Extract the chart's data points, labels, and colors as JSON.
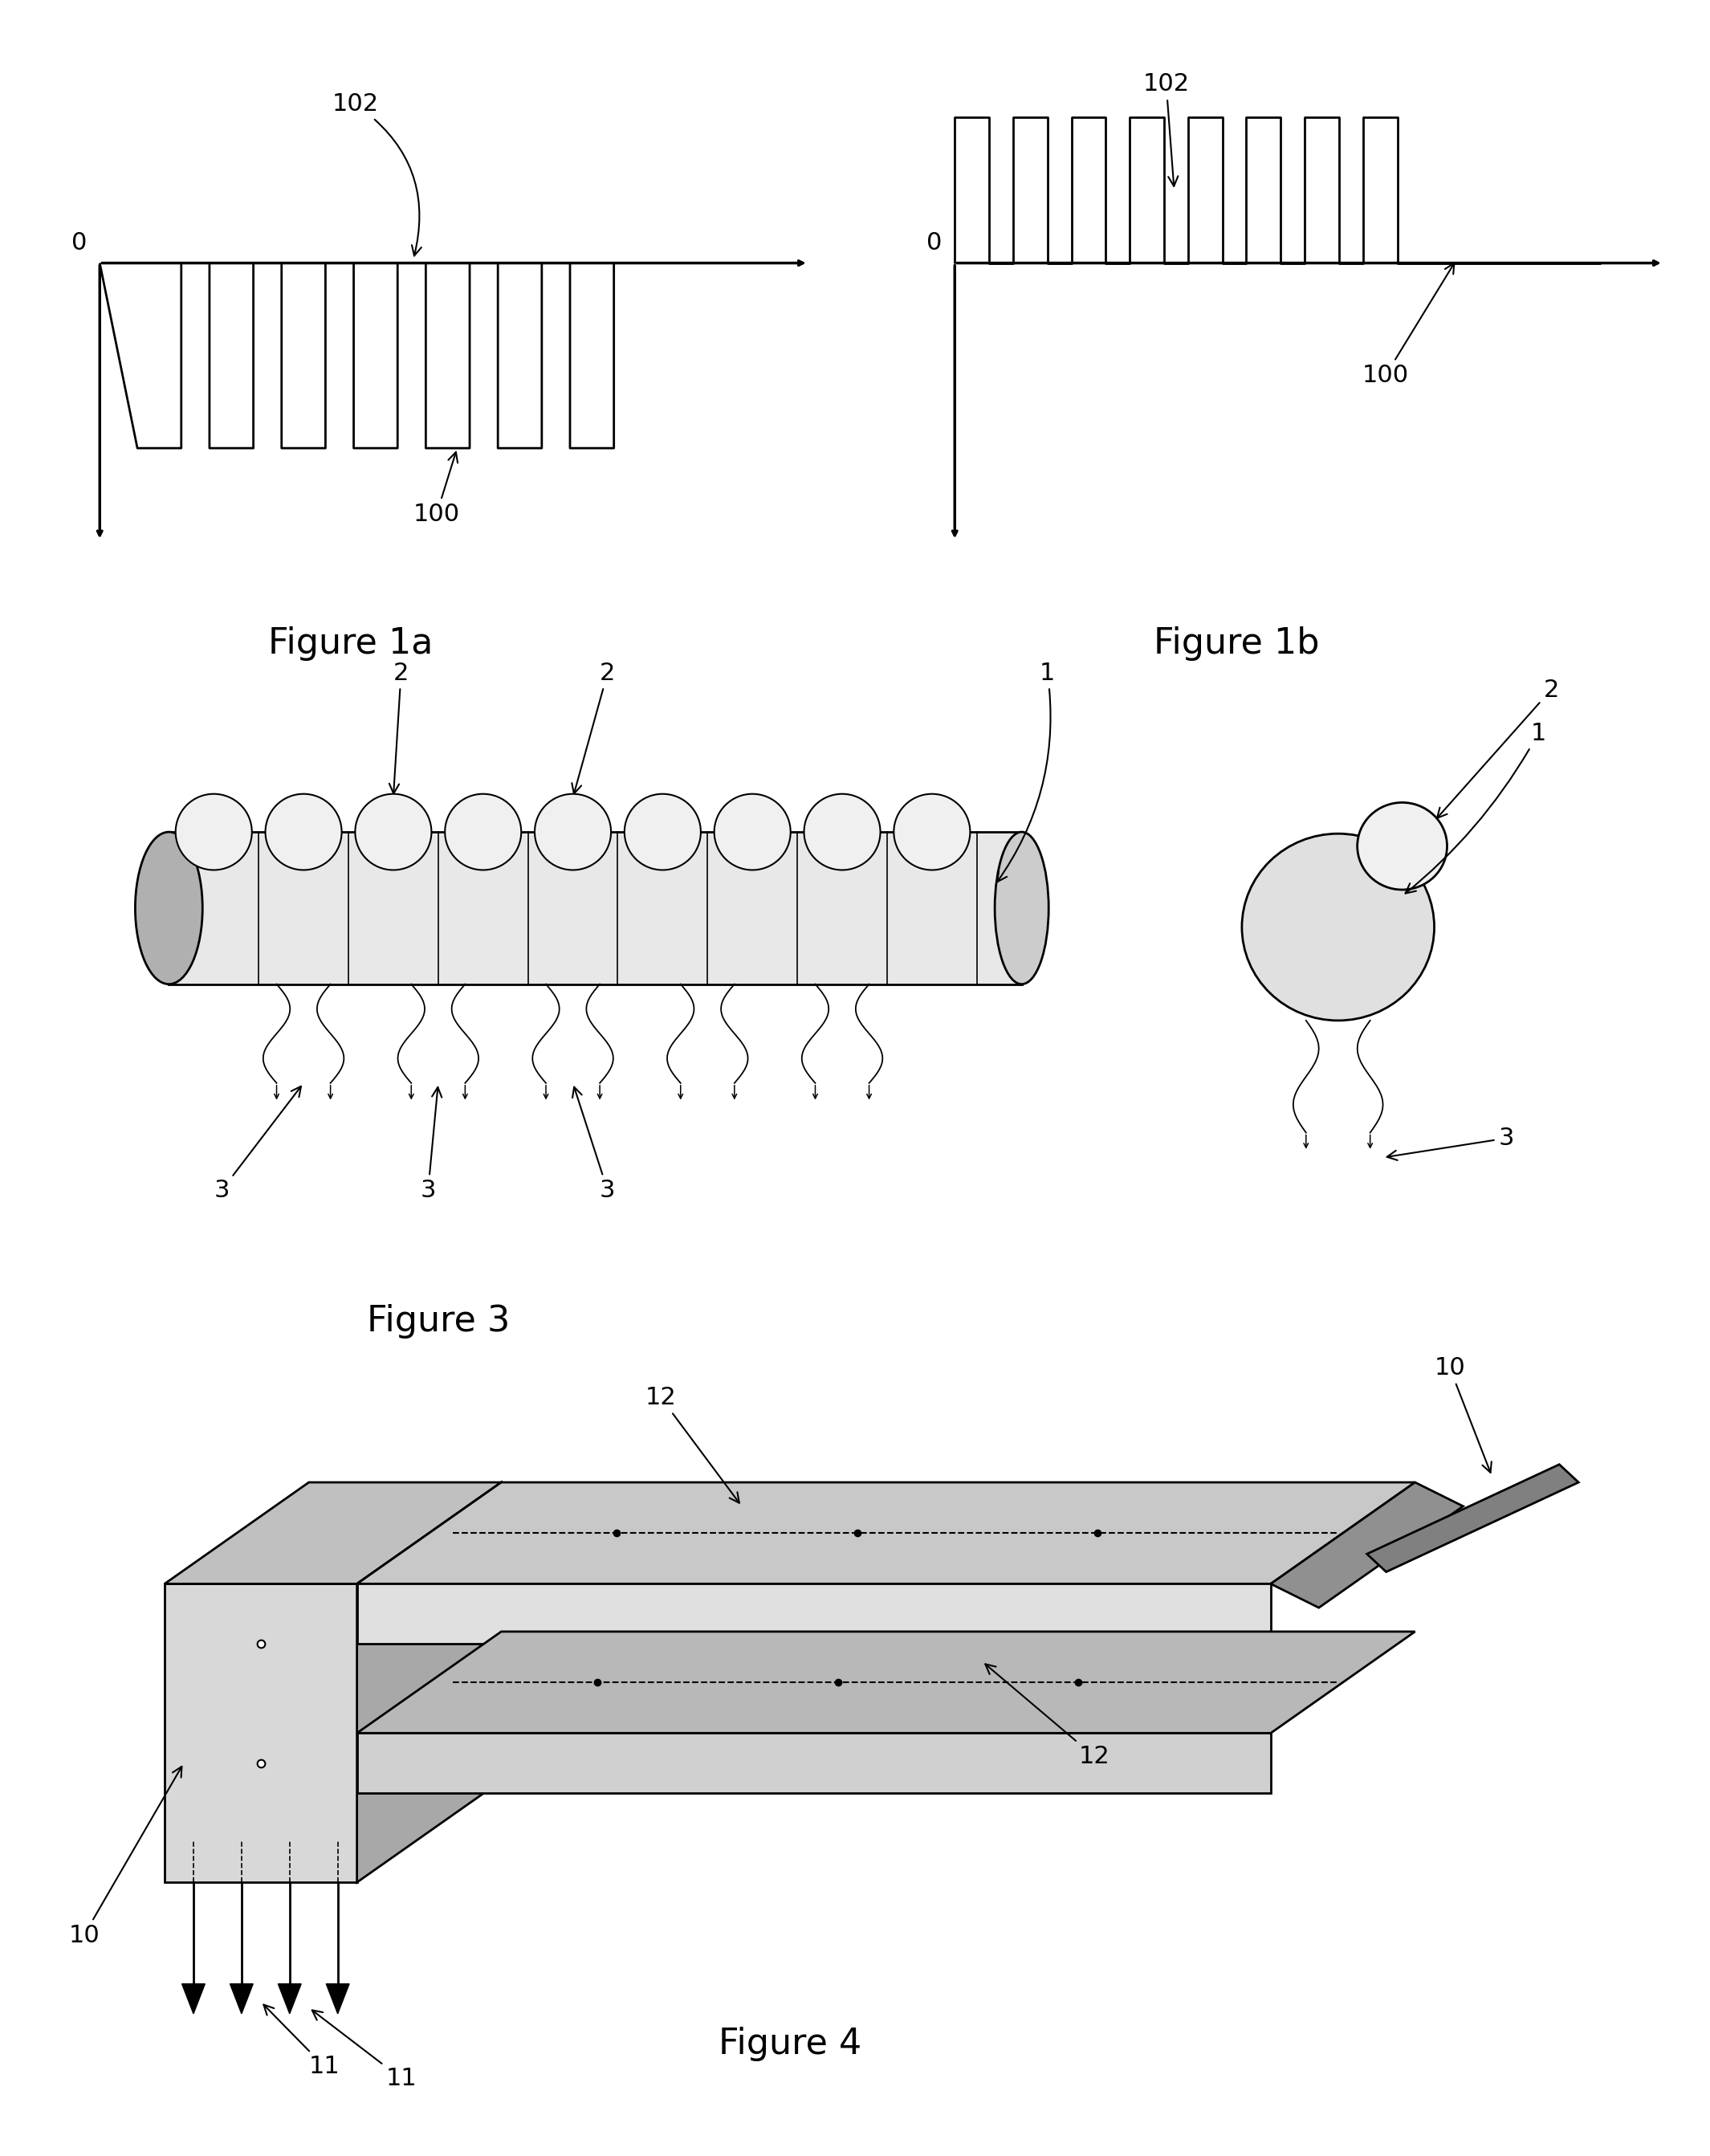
{
  "fig_width": 21.3,
  "fig_height": 26.85,
  "bg_color": "#ffffff",
  "lc": "#000000",
  "title_fontsize": 32,
  "annot_fontsize": 22,
  "lw": 2.0,
  "fig1a_title": "Figure 1a",
  "fig1b_title": "Figure 1b",
  "fig3_title": "Figure 3",
  "fig4_title": "Figure 4"
}
